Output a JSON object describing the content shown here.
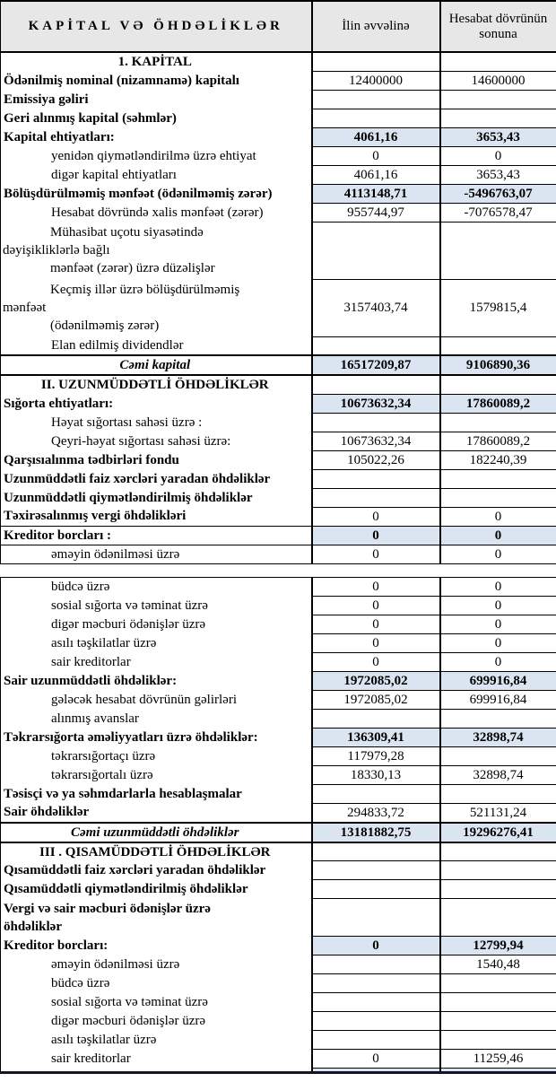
{
  "title": "KAPİTAL VƏ ÖHDƏLİKLƏR",
  "columns": {
    "col1": "İlin əvvəlinə",
    "col2": "Hesabat dövrünün sonuna"
  },
  "colors": {
    "highlight": "#dbe5f1",
    "header_bg": "#e7e7e7",
    "border": "#000000",
    "thick_bottom": "#15152a"
  },
  "segments": [
    {
      "rows": [
        {
          "type": "section",
          "label": "1. KAPİTAL",
          "v1": "",
          "v2": ""
        },
        {
          "type": "main",
          "label": "Ödənilmiş nominal (nizamnamə) kapitalı",
          "v1": "12400000",
          "v2": "14600000"
        },
        {
          "type": "main",
          "label": "Emissiya gəliri",
          "v1": "",
          "v2": ""
        },
        {
          "type": "main",
          "label": "Geri alınmış kapital (səhmlər)",
          "v1": "",
          "v2": ""
        },
        {
          "type": "main",
          "label": "Kapital ehtiyatları:",
          "v1": "4061,16",
          "v2": "3653,43",
          "highlight": true
        },
        {
          "type": "sub",
          "label": "yenidən qiymətləndirilmə üzrə ehtiyat",
          "v1": "0",
          "v2": "0"
        },
        {
          "type": "sub",
          "label": "digər kapital ehtiyatları",
          "v1": "4061,16",
          "v2": "3653,43"
        },
        {
          "type": "main",
          "label": "Bölüşdürülməmiş mənfəət (ödənilməmiş zərər)",
          "v1": "4113148,71",
          "v2": "-5496763,07",
          "highlight": true
        },
        {
          "type": "sub",
          "label": "Hesabat dövründə xalis mənfəət (zərər)",
          "v1": "955744,97",
          "v2": "-7076578,47"
        },
        {
          "type": "subml",
          "lines": [
            "Mühasibat uçotu siyasətində",
            "dəyişikliklərlə bağlı",
            "mənfəət (zərər) üzrə düzəlişlər"
          ],
          "indents": [
            1,
            0,
            1
          ],
          "v1": "",
          "v2": ""
        },
        {
          "type": "subml",
          "lines": [
            "Keçmiş illər üzrə bölüşdürülməmiş",
            "mənfəət",
            "(ödənilməmiş zərər)"
          ],
          "indents": [
            1,
            0,
            1
          ],
          "v1": "3157403,74",
          "v2": "1579815,4"
        },
        {
          "type": "sub",
          "label": "Elan edilmiş dividendlər",
          "v1": "",
          "v2": ""
        },
        {
          "type": "total",
          "label": "Cəmi kapital",
          "v1": "16517209,87",
          "v2": "9106890,36",
          "highlight": true
        },
        {
          "type": "section",
          "label": "II. UZUNMÜDDƏTLİ ÖHDƏLİKLƏR",
          "v1": "",
          "v2": ""
        },
        {
          "type": "main",
          "label": "Sığorta ehtiyatları:",
          "v1": "10673632,34",
          "v2": "17860089,2",
          "highlight": true
        },
        {
          "type": "sub",
          "label": "Həyat sığortası sahəsi üzrə :",
          "v1": "",
          "v2": ""
        },
        {
          "type": "sub",
          "label": "Qeyri-həyat sığortası sahəsi üzrə:",
          "v1": "10673632,34",
          "v2": "17860089,2"
        },
        {
          "type": "main",
          "label": "Qarşısıalınma tədbirləri fondu",
          "v1": "105022,26",
          "v2": "182240,39"
        },
        {
          "type": "main",
          "label": "Uzunmüddətli faiz xərcləri yaradan öhdəliklər",
          "v1": "",
          "v2": ""
        },
        {
          "type": "main",
          "label": "Uzunmüddətli qiymətləndirilmiş öhdəliklər",
          "v1": "",
          "v2": ""
        },
        {
          "type": "main",
          "label": "Təxirəsalınmış vergi öhdəlikləri",
          "v1": "0",
          "v2": "0"
        },
        {
          "type": "main",
          "label": "Kreditor borcları :",
          "v1": "0",
          "v2": "0",
          "highlight": true,
          "grid": true
        },
        {
          "type": "sub",
          "label": "əməyin ödənilməsi üzrə",
          "v1": "0",
          "v2": "0",
          "grid": true
        }
      ]
    },
    {
      "rows": [
        {
          "type": "sub",
          "label": "büdcə üzrə",
          "v1": "0",
          "v2": "0"
        },
        {
          "type": "sub",
          "label": "sosial sığorta və təminat üzrə",
          "v1": "0",
          "v2": "0"
        },
        {
          "type": "sub",
          "label": "digər məcburi ödənişlər üzrə",
          "v1": "0",
          "v2": "0"
        },
        {
          "type": "sub",
          "label": "asılı təşkilatlar üzrə",
          "v1": "0",
          "v2": "0"
        },
        {
          "type": "sub",
          "label": "sair kreditorlar",
          "v1": "0",
          "v2": "0"
        },
        {
          "type": "main",
          "label": "Sair uzunmüddətli öhdəliklər:",
          "v1": "1972085,02",
          "v2": "699916,84",
          "highlight": true
        },
        {
          "type": "sub",
          "label": "gələcək hesabat dövrünün gəlirləri",
          "v1": "1972085,02",
          "v2": "699916,84"
        },
        {
          "type": "sub",
          "label": "alınmış avanslar",
          "v1": "",
          "v2": ""
        },
        {
          "type": "main",
          "label": "Təkrarsığorta əməliyyatları üzrə öhdəliklər:",
          "v1": "136309,41",
          "v2": "32898,74",
          "highlight": true
        },
        {
          "type": "sub",
          "label": "təkrarsığortaçı üzrə",
          "v1": "117979,28",
          "v2": ""
        },
        {
          "type": "sub",
          "label": "təkrarsığortalı üzrə",
          "v1": "18330,13",
          "v2": "32898,74"
        },
        {
          "type": "main",
          "label": "Təsisçi və ya səhmdarlarla hesablaşmalar",
          "v1": "",
          "v2": ""
        },
        {
          "type": "main",
          "label": "Sair öhdəliklər",
          "v1": "294833,72",
          "v2": "521131,24"
        },
        {
          "type": "total",
          "label": "Cəmi uzunmüddətli öhdəliklər",
          "v1": "13181882,75",
          "v2": "19296276,41",
          "highlight": true
        },
        {
          "type": "section",
          "label": "III . QISAMÜDDƏTLİ ÖHDƏLİKLƏR",
          "v1": "",
          "v2": ""
        },
        {
          "type": "main",
          "label": "Qısamüddətli faiz xərcləri yaradan öhdəliklər",
          "v1": "",
          "v2": ""
        },
        {
          "type": "main",
          "label": "Qısamüddətli qiymətləndirilmiş öhdəliklər",
          "v1": "",
          "v2": ""
        },
        {
          "type": "mainml",
          "lines": [
            "Vergi və sair məcburi ödənişlər üzrə",
            "öhdəliklər"
          ],
          "indents": [
            0,
            0
          ],
          "v1": "",
          "v2": ""
        },
        {
          "type": "main",
          "label": "Kreditor borcları:",
          "v1": "0",
          "v2": "12799,94",
          "highlight": true
        },
        {
          "type": "sub",
          "label": "əməyin ödənilməsi üzrə",
          "v1": "",
          "v2": "1540,48"
        },
        {
          "type": "sub",
          "label": "büdcə üzrə",
          "v1": "",
          "v2": ""
        },
        {
          "type": "sub",
          "label": "sosial sığorta və təminat üzrə",
          "v1": "",
          "v2": ""
        },
        {
          "type": "sub",
          "label": "digər məcburi ödənişlər üzrə",
          "v1": "",
          "v2": ""
        },
        {
          "type": "sub",
          "label": "asılı təşkilatlar üzrə",
          "v1": "",
          "v2": ""
        },
        {
          "type": "sub",
          "label": "sair kreditorlar",
          "v1": "0",
          "v2": "11259,46"
        },
        {
          "type": "strip",
          "label": "",
          "v1": "",
          "v2": "",
          "highlight": true
        }
      ]
    }
  ]
}
